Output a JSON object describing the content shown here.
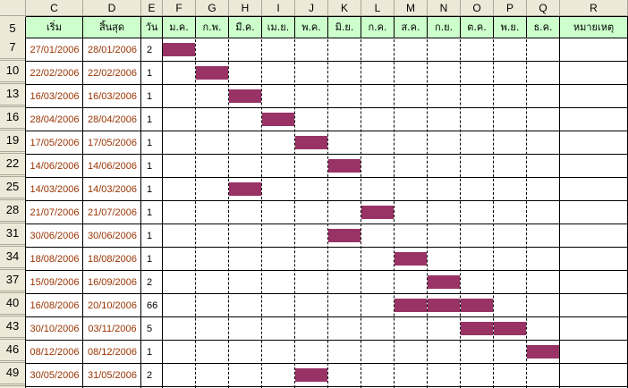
{
  "column_letters": [
    "C",
    "D",
    "E",
    "F",
    "G",
    "H",
    "I",
    "J",
    "K",
    "L",
    "M",
    "N",
    "O",
    "P",
    "Q",
    "R"
  ],
  "header_row_number": "5",
  "headers": {
    "start": "เริ่ม",
    "end": "สิ้นสุด",
    "days": "วัน",
    "months": [
      "ม.ค.",
      "ก.พ.",
      "มี.ค.",
      "เม.ย.",
      "พ.ค.",
      "มิ.ย.",
      "ก.ค.",
      "ส.ค.",
      "ก.ย.",
      "ต.ค.",
      "พ.ย.",
      "ธ.ค."
    ],
    "remark": "หมายเหตุ"
  },
  "colors": {
    "header_fill": "#ccffcc",
    "bar_fill": "#993366",
    "date_text": "#993300",
    "excel_header_bg": "#ece9d8"
  },
  "rows": [
    {
      "row_number": "7",
      "start": "27/01/2006",
      "end": "28/01/2006",
      "days": "2",
      "active_months": [
        1
      ]
    },
    {
      "row_number": "10",
      "start": "22/02/2006",
      "end": "22/02/2006",
      "days": "1",
      "active_months": [
        2
      ]
    },
    {
      "row_number": "13",
      "start": "16/03/2006",
      "end": "16/03/2006",
      "days": "1",
      "active_months": [
        3
      ]
    },
    {
      "row_number": "16",
      "start": "28/04/2006",
      "end": "28/04/2006",
      "days": "1",
      "active_months": [
        4
      ]
    },
    {
      "row_number": "19",
      "start": "17/05/2006",
      "end": "17/05/2006",
      "days": "1",
      "active_months": [
        5
      ]
    },
    {
      "row_number": "22",
      "start": "14/06/2006",
      "end": "14/06/2006",
      "days": "1",
      "active_months": [
        6
      ]
    },
    {
      "row_number": "25",
      "start": "14/03/2006",
      "end": "14/03/2006",
      "days": "1",
      "active_months": [
        3
      ]
    },
    {
      "row_number": "28",
      "start": "21/07/2006",
      "end": "21/07/2006",
      "days": "1",
      "active_months": [
        7
      ]
    },
    {
      "row_number": "31",
      "start": "30/06/2006",
      "end": "30/06/2006",
      "days": "1",
      "active_months": [
        6
      ]
    },
    {
      "row_number": "34",
      "start": "18/08/2006",
      "end": "18/08/2006",
      "days": "1",
      "active_months": [
        8
      ]
    },
    {
      "row_number": "37",
      "start": "15/09/2006",
      "end": "16/09/2006",
      "days": "2",
      "active_months": [
        9
      ]
    },
    {
      "row_number": "40",
      "start": "16/08/2006",
      "end": "20/10/2006",
      "days": "66",
      "active_months": [
        8,
        9,
        10
      ]
    },
    {
      "row_number": "43",
      "start": "30/10/2006",
      "end": "03/11/2006",
      "days": "5",
      "active_months": [
        10,
        11
      ]
    },
    {
      "row_number": "46",
      "start": "08/12/2006",
      "end": "08/12/2006",
      "days": "1",
      "active_months": [
        12
      ]
    },
    {
      "row_number": "49",
      "start": "30/05/2006",
      "end": "31/05/2006",
      "days": "2",
      "active_months": [
        5
      ]
    }
  ]
}
